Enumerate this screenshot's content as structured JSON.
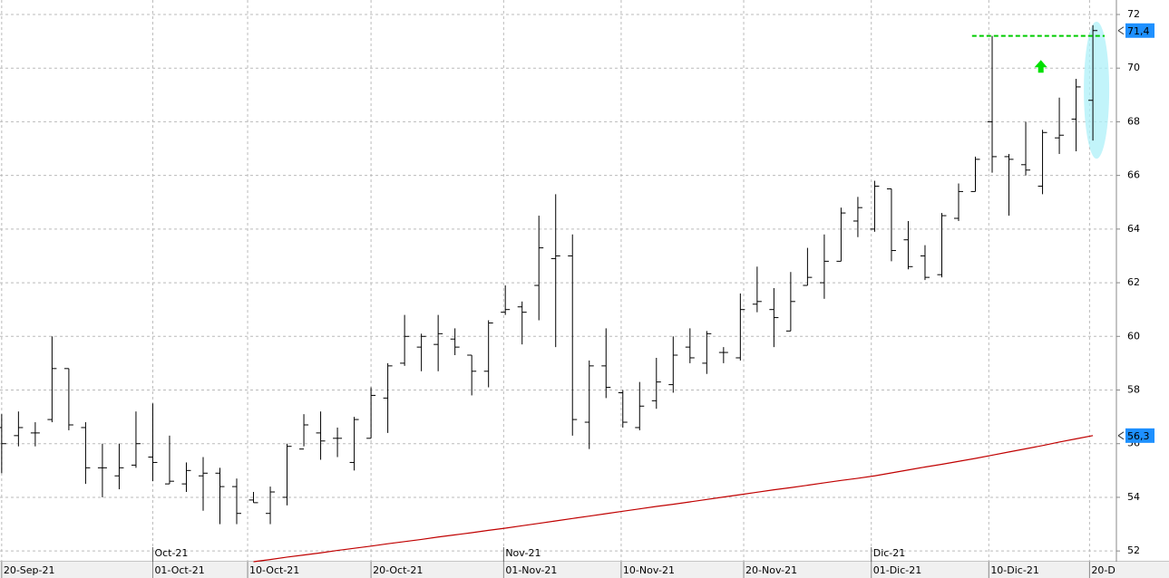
{
  "chart_data": {
    "type": "ohlc",
    "x": [
      0,
      1,
      2,
      3,
      4,
      5,
      6,
      7,
      8,
      9,
      10,
      11,
      12,
      13,
      14,
      15,
      16,
      17,
      18,
      19,
      20,
      21,
      22,
      23,
      24,
      25,
      26,
      27,
      28,
      29,
      30,
      31,
      32,
      33,
      34,
      35,
      36,
      37,
      38,
      39,
      40,
      41,
      42,
      43,
      44,
      45,
      46,
      47,
      48,
      49,
      50,
      51,
      52,
      53,
      54,
      55,
      56,
      57,
      58,
      59,
      60,
      61,
      62,
      63,
      64,
      65
    ],
    "open": [
      56.6,
      56.3,
      56.4,
      56.9,
      58.8,
      56.6,
      55.1,
      54.8,
      55.2,
      55.5,
      54.5,
      54.5,
      54.8,
      54.9,
      54.4,
      53.9,
      53.4,
      54.0,
      55.8,
      56.4,
      56.2,
      55.3,
      56.2,
      57.7,
      59.0,
      59.6,
      59.7,
      59.9,
      59.3,
      58.7,
      60.9,
      61.1,
      61.9,
      62.9,
      63.0,
      56.8,
      58.9,
      57.9,
      56.6,
      57.6,
      58.2,
      59.6,
      59.0,
      59.4,
      59.2,
      61.2,
      61.0,
      60.2,
      61.9,
      62.0,
      62.8,
      64.3,
      64.0,
      65.5,
      63.6,
      63.0,
      62.3,
      64.4,
      65.4,
      68.0,
      66.7,
      66.4,
      65.6,
      67.4,
      68.1,
      68.8
    ],
    "high": [
      57.1,
      57.2,
      56.8,
      60.0,
      58.8,
      56.8,
      56.0,
      56.0,
      57.2,
      57.5,
      56.3,
      55.3,
      55.5,
      55.1,
      54.7,
      54.2,
      54.4,
      56.0,
      57.1,
      57.2,
      56.6,
      57.0,
      58.1,
      59.0,
      60.8,
      60.1,
      60.8,
      60.3,
      59.3,
      60.6,
      61.9,
      61.3,
      64.5,
      65.3,
      63.8,
      59.1,
      60.3,
      58.0,
      58.3,
      59.2,
      60.0,
      60.3,
      60.2,
      59.6,
      61.6,
      62.6,
      61.8,
      62.4,
      63.3,
      63.8,
      64.8,
      65.2,
      65.8,
      65.5,
      64.3,
      63.4,
      64.6,
      65.7,
      66.7,
      71.2,
      66.8,
      68.0,
      67.7,
      68.9,
      69.6,
      71.6
    ],
    "low": [
      54.9,
      55.9,
      55.9,
      56.8,
      56.5,
      54.5,
      54.0,
      54.3,
      55.1,
      54.6,
      54.5,
      54.2,
      53.5,
      53.0,
      53.0,
      53.8,
      53.0,
      53.7,
      55.9,
      55.4,
      55.5,
      55.0,
      56.2,
      56.4,
      58.9,
      58.7,
      58.7,
      59.3,
      57.8,
      58.1,
      60.8,
      59.7,
      60.6,
      59.6,
      56.3,
      55.8,
      57.7,
      56.6,
      56.5,
      57.3,
      57.9,
      59.0,
      58.6,
      59.0,
      59.1,
      60.9,
      59.6,
      60.2,
      61.9,
      61.4,
      62.8,
      63.7,
      63.9,
      62.8,
      62.5,
      62.1,
      62.2,
      64.3,
      65.4,
      66.1,
      64.5,
      66.0,
      65.3,
      66.8,
      66.9,
      67.3
    ],
    "close": [
      56.0,
      56.6,
      56.4,
      58.8,
      56.7,
      55.1,
      55.1,
      55.1,
      56.0,
      55.3,
      54.6,
      55.0,
      54.9,
      54.4,
      53.4,
      53.8,
      54.2,
      55.9,
      56.7,
      56.1,
      56.2,
      56.9,
      57.8,
      58.9,
      60.0,
      60.0,
      60.1,
      59.6,
      58.7,
      60.5,
      61.0,
      60.9,
      63.3,
      63.0,
      56.9,
      58.9,
      58.1,
      56.8,
      57.4,
      58.3,
      59.3,
      59.2,
      60.1,
      59.4,
      61.0,
      61.3,
      60.7,
      61.3,
      62.2,
      62.8,
      64.6,
      64.8,
      65.6,
      63.2,
      62.6,
      62.2,
      64.5,
      65.4,
      66.6,
      66.7,
      66.6,
      66.2,
      67.6,
      67.5,
      69.3,
      71.4
    ],
    "color": "#000000",
    "moving_average": {
      "color": "#c00000",
      "values": [
        null,
        null,
        null,
        null,
        null,
        null,
        null,
        null,
        null,
        null,
        null,
        null,
        null,
        null,
        null,
        51.6,
        51.68,
        51.77,
        51.85,
        51.93,
        52.02,
        52.1,
        52.18,
        52.27,
        52.35,
        52.43,
        52.52,
        52.6,
        52.68,
        52.77,
        52.85,
        52.94,
        53.03,
        53.12,
        53.21,
        53.3,
        53.39,
        53.48,
        53.57,
        53.66,
        53.74,
        53.83,
        53.92,
        54.01,
        54.1,
        54.19,
        54.28,
        54.36,
        54.45,
        54.54,
        54.63,
        54.71,
        54.8,
        54.91,
        55.02,
        55.13,
        55.23,
        55.34,
        55.45,
        55.57,
        55.69,
        55.81,
        55.93,
        56.06,
        56.18,
        56.3
      ]
    },
    "xlim": [
      -0.1,
      66.4
    ],
    "ylim": [
      51.6,
      72.54
    ],
    "yticks": [
      52,
      54,
      56,
      58,
      60,
      62,
      64,
      66,
      68,
      70,
      72
    ],
    "xticks": [
      {
        "value": 0,
        "label": "20-Sep-21"
      },
      {
        "value": 9,
        "label": "01-Oct-21"
      },
      {
        "value": 14.65,
        "label": "10-Oct-21"
      },
      {
        "value": 22,
        "label": "20-Oct-21"
      },
      {
        "value": 29.9,
        "label": "01-Nov-21"
      },
      {
        "value": 36.9,
        "label": "10-Nov-21"
      },
      {
        "value": 44.2,
        "label": "20-Nov-21"
      },
      {
        "value": 51.8,
        "label": "01-Dic-21"
      },
      {
        "value": 58.8,
        "label": "10-Dic-21"
      },
      {
        "value": 64.8,
        "label": "20-D"
      }
    ],
    "month_ticks": [
      {
        "value": 9,
        "label": "Oct-21"
      },
      {
        "value": 29.9,
        "label": "Nov-21"
      },
      {
        "value": 51.8,
        "label": "Dic-21"
      }
    ],
    "grid": true,
    "last_price": {
      "value": 71.4,
      "label": "71,4"
    },
    "last_average": {
      "value": 56.3,
      "label": "56,3"
    },
    "resistance": {
      "value": 71.2,
      "x": [
        57.8,
        65.7
      ],
      "color": "#00cc00"
    },
    "arrow": {
      "x": 61.9,
      "y": 70.0,
      "color": "#00e000"
    }
  }
}
